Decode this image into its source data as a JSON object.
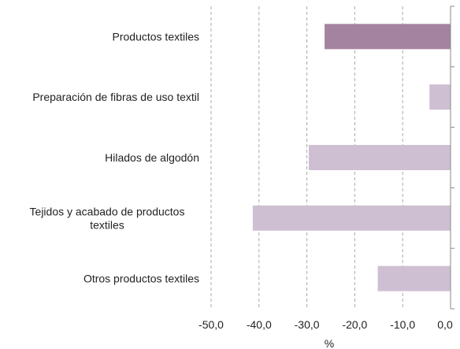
{
  "chart_data": {
    "type": "bar",
    "orientation": "horizontal",
    "categories": [
      [
        "Productos textiles"
      ],
      [
        "Preparación de fibras de uso textil"
      ],
      [
        "Hilados de algodón"
      ],
      [
        "Tejidos y acabado de productos",
        "textiles"
      ],
      [
        "Otros productos textiles"
      ]
    ],
    "values": [
      -26.3,
      -4.4,
      -29.6,
      -41.3,
      -15.2
    ],
    "highlight_index": 0,
    "colors": {
      "highlight": "#a3839f",
      "bar": "#cfbfd3",
      "grid": "#aaaaaa",
      "axis": "#888888"
    },
    "xlim": [
      -50,
      0
    ],
    "xticks": [
      -50,
      -40,
      -30,
      -20,
      -10,
      0
    ],
    "xtick_labels": [
      "-50,0",
      "-40,0",
      "-30,0",
      "-20,0",
      "-10,0",
      "0,0"
    ],
    "xlabel": "%",
    "title": "",
    "grid": "vertical-dashed"
  }
}
